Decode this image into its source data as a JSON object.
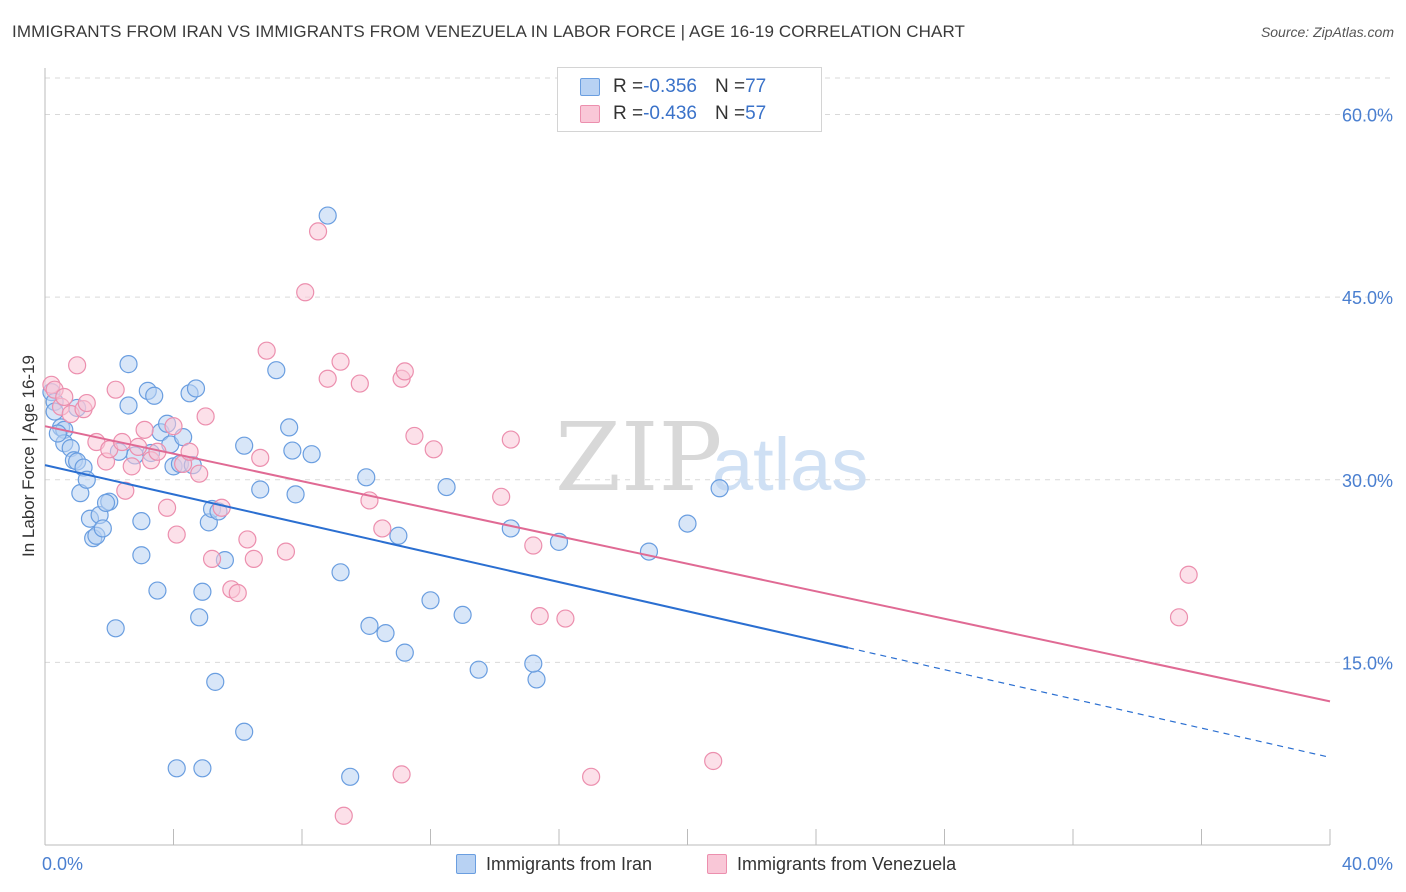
{
  "header": {
    "title": "IMMIGRANTS FROM IRAN VS IMMIGRANTS FROM VENEZUELA IN LABOR FORCE | AGE 16-19 CORRELATION CHART",
    "source": "Source: ZipAtlas.com"
  },
  "watermark": {
    "zip": "ZIP",
    "atlas": "atlas"
  },
  "legend": {
    "rows": [
      {
        "r_label": "R = ",
        "r_value": "-0.356",
        "n_label": "N = ",
        "n_value": "77"
      },
      {
        "r_label": "R = ",
        "r_value": "-0.436",
        "n_label": "N = ",
        "n_value": "57"
      }
    ]
  },
  "bottom_legend": {
    "iran": "Immigrants from Iran",
    "venezuela": "Immigrants from Venezuela"
  },
  "colors": {
    "iran_fill": "#b8d2f3",
    "iran_stroke": "#6a9ee0",
    "iran_line": "#2b6fd1",
    "venezuela_fill": "#f9c7d7",
    "venezuela_stroke": "#ec8fae",
    "venezuela_line": "#e06a94",
    "grid": "#d9d9d9",
    "tick_text": "#4a7fd0"
  },
  "chart_data": {
    "type": "scatter",
    "title": "IMMIGRANTS FROM IRAN VS IMMIGRANTS FROM VENEZUELA IN LABOR FORCE | AGE 16-19 CORRELATION CHART",
    "xlabel": "",
    "ylabel": "In Labor Force | Age 16-19",
    "xlim": [
      0,
      40
    ],
    "ylim": [
      0,
      63
    ],
    "x_tick_labels": [
      "0.0%",
      "40.0%"
    ],
    "y_ticks": [
      15,
      30,
      45,
      60
    ],
    "y_tick_labels": [
      "15.0%",
      "30.0%",
      "45.0%",
      "60.0%"
    ],
    "grid": true,
    "legend_position": "top-center",
    "series": [
      {
        "name": "Immigrants from Iran",
        "color": "#6a9ee0",
        "R": -0.356,
        "N": 77,
        "trend": {
          "x0": 0,
          "y0": 31.2,
          "x1": 25,
          "y1": 16.2,
          "dashed_to_x": 40,
          "dashed_to_y": 7.2
        },
        "points": [
          [
            0.2,
            37.2
          ],
          [
            0.3,
            36.4
          ],
          [
            0.3,
            35.6
          ],
          [
            0.5,
            34.3
          ],
          [
            0.6,
            34.1
          ],
          [
            0.6,
            33.0
          ],
          [
            0.8,
            32.6
          ],
          [
            0.9,
            31.6
          ],
          [
            1.0,
            31.5
          ],
          [
            1.0,
            35.9
          ],
          [
            1.2,
            31.0
          ],
          [
            1.1,
            28.9
          ],
          [
            1.3,
            30.0
          ],
          [
            1.4,
            26.8
          ],
          [
            1.5,
            25.2
          ],
          [
            1.6,
            25.4
          ],
          [
            1.7,
            27.1
          ],
          [
            1.8,
            26.0
          ],
          [
            2.0,
            28.2
          ],
          [
            2.6,
            39.5
          ],
          [
            2.6,
            36.1
          ],
          [
            2.8,
            32.0
          ],
          [
            3.0,
            23.8
          ],
          [
            3.0,
            26.6
          ],
          [
            3.2,
            37.3
          ],
          [
            3.4,
            36.9
          ],
          [
            3.5,
            20.9
          ],
          [
            3.6,
            33.9
          ],
          [
            3.8,
            34.6
          ],
          [
            3.9,
            32.9
          ],
          [
            4.0,
            31.1
          ],
          [
            4.2,
            31.3
          ],
          [
            4.3,
            33.5
          ],
          [
            4.5,
            37.1
          ],
          [
            4.7,
            37.5
          ],
          [
            4.8,
            18.7
          ],
          [
            4.9,
            20.8
          ],
          [
            5.1,
            26.5
          ],
          [
            5.2,
            27.6
          ],
          [
            5.3,
            13.4
          ],
          [
            5.4,
            27.4
          ],
          [
            5.6,
            23.4
          ],
          [
            6.2,
            9.3
          ],
          [
            6.7,
            29.2
          ],
          [
            7.2,
            39.0
          ],
          [
            7.6,
            34.3
          ],
          [
            7.7,
            32.4
          ],
          [
            7.8,
            28.8
          ],
          [
            8.3,
            32.1
          ],
          [
            8.8,
            51.7
          ],
          [
            9.2,
            22.4
          ],
          [
            10.0,
            30.2
          ],
          [
            10.1,
            18.0
          ],
          [
            10.6,
            17.4
          ],
          [
            11.0,
            25.4
          ],
          [
            11.2,
            15.8
          ],
          [
            12.0,
            20.1
          ],
          [
            12.5,
            29.4
          ],
          [
            13.0,
            18.9
          ],
          [
            13.5,
            14.4
          ],
          [
            14.5,
            26.0
          ],
          [
            15.3,
            13.6
          ],
          [
            15.2,
            14.9
          ],
          [
            16.0,
            24.9
          ],
          [
            18.8,
            24.1
          ],
          [
            20.0,
            26.4
          ],
          [
            21.0,
            29.3
          ],
          [
            4.1,
            6.3
          ],
          [
            4.9,
            6.3
          ],
          [
            9.5,
            5.6
          ],
          [
            6.2,
            32.8
          ],
          [
            1.9,
            28.1
          ],
          [
            3.3,
            32.2
          ],
          [
            2.2,
            17.8
          ],
          [
            0.4,
            33.8
          ],
          [
            4.6,
            31.2
          ],
          [
            2.3,
            32.3
          ]
        ]
      },
      {
        "name": "Immigrants from Venezuela",
        "color": "#ec8fae",
        "R": -0.436,
        "N": 57,
        "trend": {
          "x0": 0,
          "y0": 34.4,
          "x1": 40,
          "y1": 11.8
        },
        "points": [
          [
            0.2,
            37.8
          ],
          [
            0.3,
            37.4
          ],
          [
            0.5,
            36.0
          ],
          [
            0.6,
            36.8
          ],
          [
            0.8,
            35.4
          ],
          [
            1.0,
            39.4
          ],
          [
            1.2,
            35.8
          ],
          [
            1.3,
            36.3
          ],
          [
            1.6,
            33.1
          ],
          [
            1.9,
            31.5
          ],
          [
            2.0,
            32.5
          ],
          [
            2.2,
            37.4
          ],
          [
            2.4,
            33.1
          ],
          [
            2.5,
            29.1
          ],
          [
            2.7,
            31.1
          ],
          [
            2.9,
            32.7
          ],
          [
            3.1,
            34.1
          ],
          [
            3.3,
            31.6
          ],
          [
            3.5,
            32.3
          ],
          [
            3.8,
            27.7
          ],
          [
            4.0,
            34.4
          ],
          [
            4.1,
            25.5
          ],
          [
            4.3,
            31.3
          ],
          [
            4.5,
            32.3
          ],
          [
            4.8,
            30.5
          ],
          [
            5.0,
            35.2
          ],
          [
            5.2,
            23.5
          ],
          [
            5.5,
            27.7
          ],
          [
            5.8,
            21.0
          ],
          [
            6.0,
            20.7
          ],
          [
            6.3,
            25.1
          ],
          [
            6.5,
            23.5
          ],
          [
            6.7,
            31.8
          ],
          [
            6.9,
            40.6
          ],
          [
            7.5,
            24.1
          ],
          [
            8.1,
            45.4
          ],
          [
            8.5,
            50.4
          ],
          [
            8.8,
            38.3
          ],
          [
            9.2,
            39.7
          ],
          [
            9.8,
            37.9
          ],
          [
            10.1,
            28.3
          ],
          [
            10.5,
            26.0
          ],
          [
            11.1,
            38.3
          ],
          [
            11.2,
            38.9
          ],
          [
            11.5,
            33.6
          ],
          [
            12.1,
            32.5
          ],
          [
            14.5,
            33.3
          ],
          [
            14.2,
            28.6
          ],
          [
            15.2,
            24.6
          ],
          [
            15.4,
            18.8
          ],
          [
            16.2,
            18.6
          ],
          [
            17.0,
            5.6
          ],
          [
            20.8,
            6.9
          ],
          [
            35.6,
            22.2
          ],
          [
            35.3,
            18.7
          ],
          [
            9.3,
            2.4
          ],
          [
            11.1,
            5.8
          ]
        ]
      }
    ]
  }
}
